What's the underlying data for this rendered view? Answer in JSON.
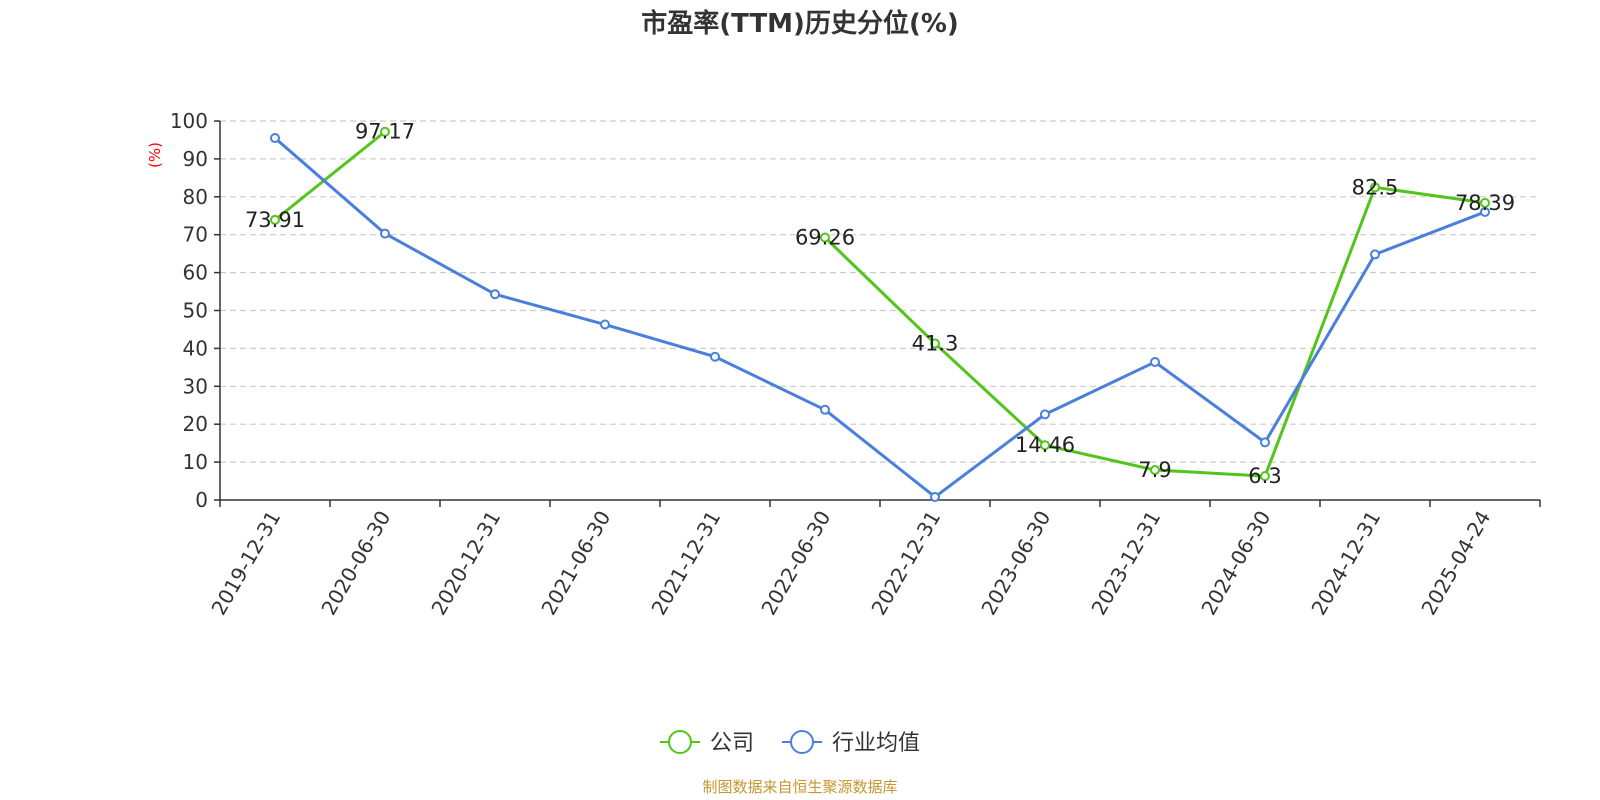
{
  "chart_data": {
    "type": "line",
    "title": "市盈率(TTM)历史分位(%)",
    "ylabel": "(%)",
    "ylim": [
      0,
      100
    ],
    "yticks": [
      0,
      10,
      20,
      30,
      40,
      50,
      60,
      70,
      80,
      90,
      100
    ],
    "grid": true,
    "categories": [
      "2019-12-31",
      "2020-06-30",
      "2020-12-31",
      "2021-06-30",
      "2021-12-31",
      "2022-06-30",
      "2022-12-31",
      "2023-06-30",
      "2023-12-31",
      "2024-06-30",
      "2024-12-31",
      "2025-04-24"
    ],
    "series": [
      {
        "name": "公司",
        "color": "#52c41a",
        "values": [
          73.91,
          97.17,
          null,
          null,
          null,
          69.26,
          41.3,
          14.46,
          7.9,
          6.3,
          82.5,
          78.39
        ],
        "labels": [
          "73.91",
          "97.17",
          null,
          null,
          null,
          "69.26",
          "41.3",
          "14.46",
          "7.9",
          "6.3",
          "82.5",
          "78.39"
        ]
      },
      {
        "name": "行业均值",
        "color": "#4a7fdc",
        "values": [
          95.5,
          70.3,
          54.3,
          46.3,
          37.8,
          23.8,
          0.8,
          22.6,
          36.4,
          15.2,
          64.8,
          76.0
        ],
        "labels": null
      }
    ],
    "legend_position": "bottom-center"
  },
  "footer": {
    "source": "制图数据来自恒生聚源数据库",
    "source_color": "#c8962e"
  },
  "colors": {
    "ylabel": "#ff0000",
    "axis": "#333333",
    "grid": "#cccccc"
  }
}
